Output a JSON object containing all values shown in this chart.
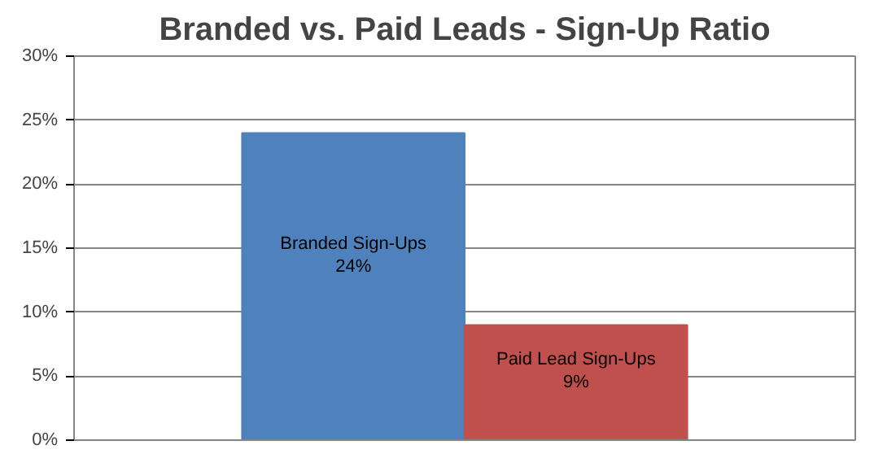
{
  "chart_data": {
    "type": "bar",
    "title": "Branded vs. Paid Leads - Sign-Up Ratio",
    "categories": [
      null
    ],
    "series": [
      {
        "name": "Branded Sign-Ups",
        "color": "#4f81bd",
        "values": [
          24
        ],
        "value_labels": [
          "24%"
        ]
      },
      {
        "name": "Paid Lead Sign-Ups",
        "color": "#c0504d",
        "values": [
          9
        ],
        "value_labels": [
          "9%"
        ]
      }
    ],
    "ylim": [
      0,
      30
    ],
    "yticks": [
      {
        "value": 0,
        "label": "0%"
      },
      {
        "value": 5,
        "label": "5%"
      },
      {
        "value": 10,
        "label": "10%"
      },
      {
        "value": 15,
        "label": "15%"
      },
      {
        "value": 20,
        "label": "20%"
      },
      {
        "value": 25,
        "label": "25%"
      },
      {
        "value": 30,
        "label": "30%"
      }
    ],
    "grid": "y"
  }
}
